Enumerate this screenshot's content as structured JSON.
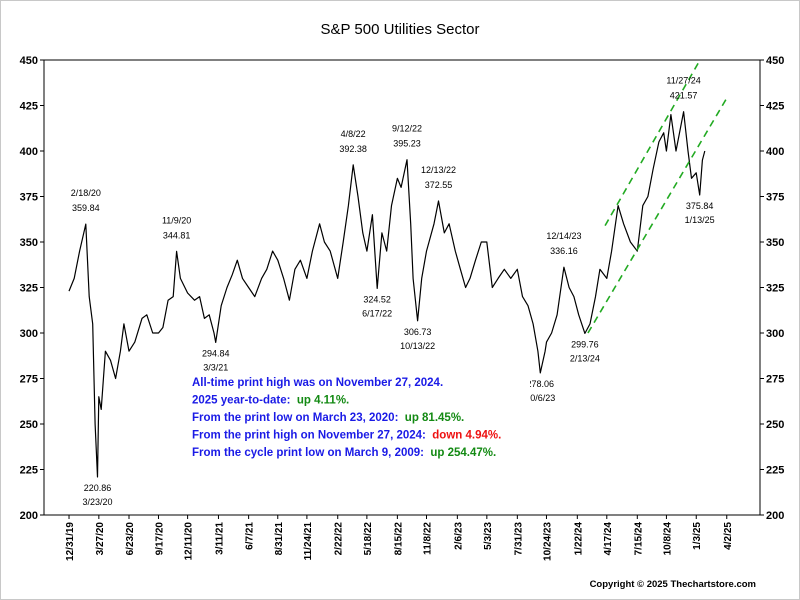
{
  "chart_data": {
    "type": "line",
    "title": "S&P 500 Utilities Sector",
    "color": "#000000",
    "x": [
      "12/31/19",
      "1/15/20",
      "1/31/20",
      "2/18/20",
      "2/28/20",
      "3/9/20",
      "3/16/20",
      "3/23/20",
      "3/27/20",
      "4/3/20",
      "4/15/20",
      "4/30/20",
      "5/15/20",
      "5/29/20",
      "6/8/20",
      "6/23/20",
      "7/10/20",
      "7/31/20",
      "8/14/20",
      "8/31/20",
      "9/17/20",
      "9/30/20",
      "10/15/20",
      "10/30/20",
      "11/9/20",
      "11/20/20",
      "12/11/20",
      "12/31/20",
      "1/15/21",
      "1/29/21",
      "2/12/21",
      "2/26/21",
      "3/3/21",
      "3/19/21",
      "4/5/21",
      "4/20/21",
      "5/5/21",
      "5/20/21",
      "6/7/21",
      "6/25/21",
      "7/15/21",
      "7/30/21",
      "8/16/21",
      "8/31/21",
      "9/17/21",
      "10/4/21",
      "10/20/21",
      "11/5/21",
      "11/24/21",
      "12/10/21",
      "12/31/21",
      "1/14/22",
      "1/31/22",
      "2/22/22",
      "3/10/22",
      "3/25/22",
      "4/8/22",
      "4/22/22",
      "5/6/22",
      "5/18/22",
      "6/3/22",
      "6/17/22",
      "7/1/22",
      "7/15/22",
      "7/29/22",
      "8/15/22",
      "8/26/22",
      "9/12/22",
      "9/23/22",
      "9/30/22",
      "10/13/22",
      "10/25/22",
      "11/8/22",
      "11/30/22",
      "12/13/22",
      "12/30/22",
      "1/13/23",
      "1/31/23",
      "2/15/23",
      "3/2/23",
      "3/15/23",
      "3/31/23",
      "4/17/23",
      "5/3/23",
      "5/19/23",
      "6/5/23",
      "6/23/23",
      "7/12/23",
      "7/31/23",
      "8/15/23",
      "8/31/23",
      "9/15/23",
      "9/29/23",
      "10/6/23",
      "10/20/23",
      "10/24/23",
      "11/8/23",
      "11/24/23",
      "12/14/23",
      "12/29/23",
      "1/12/24",
      "1/26/24",
      "2/13/24",
      "2/28/24",
      "3/15/24",
      "3/28/24",
      "4/17/24",
      "5/1/24",
      "5/20/24",
      "6/5/24",
      "6/25/24",
      "7/15/24",
      "7/31/24",
      "8/15/24",
      "8/30/24",
      "9/16/24",
      "9/30/24",
      "10/8/24",
      "10/21/24",
      "11/5/24",
      "11/27/24",
      "12/10/24",
      "12/20/24",
      "1/3/25",
      "1/13/25",
      "1/21/25",
      "1/28/25"
    ],
    "values": [
      323,
      330,
      345,
      359.84,
      320,
      305,
      250,
      220.86,
      265,
      258,
      290,
      285,
      275,
      290,
      305,
      290,
      295,
      308,
      310,
      300,
      300,
      303,
      318,
      320,
      344.81,
      330,
      322,
      318,
      320,
      308,
      310,
      300,
      294.84,
      315,
      325,
      332,
      340,
      330,
      325,
      320,
      330,
      335,
      345,
      340,
      330,
      318,
      335,
      340,
      330,
      345,
      360,
      350,
      345,
      330,
      350,
      370,
      392.38,
      375,
      355,
      345,
      365,
      324.52,
      355,
      345,
      370,
      385,
      380,
      395.23,
      360,
      330,
      306.73,
      330,
      345,
      360,
      372.55,
      355,
      360,
      345,
      335,
      325,
      330,
      340,
      350,
      350,
      325,
      330,
      335,
      330,
      335,
      320,
      315,
      305,
      290,
      278.06,
      290,
      295,
      300,
      310,
      336.16,
      325,
      320,
      310,
      299.76,
      305,
      320,
      335,
      330,
      345,
      370,
      360,
      350,
      345,
      370,
      375,
      390,
      405,
      410,
      400,
      420,
      400,
      421.57,
      400,
      385,
      388,
      375.84,
      395,
      400
    ],
    "xlim": [
      "10/19/19",
      "7/8/25"
    ],
    "xticks": [
      "12/31/19",
      "3/27/20",
      "6/23/20",
      "9/17/20",
      "12/11/20",
      "3/11/21",
      "6/7/21",
      "8/31/21",
      "11/24/21",
      "2/22/22",
      "5/18/22",
      "8/15/22",
      "11/8/22",
      "2/6/23",
      "5/3/23",
      "7/31/23",
      "10/24/23",
      "1/22/24",
      "4/17/24",
      "7/15/24",
      "10/8/24",
      "1/3/25",
      "4/2/25"
    ],
    "ylim": [
      200,
      450
    ],
    "yticks": [
      200,
      225,
      250,
      275,
      300,
      325,
      350,
      375,
      400,
      425,
      450
    ],
    "annotations": [
      {
        "x": "2/18/20",
        "y": 359.84
      },
      {
        "x": "3/23/20",
        "y": 220.86
      },
      {
        "x": "11/9/20",
        "y": 344.81
      },
      {
        "x": "3/3/21",
        "y": 294.84
      },
      {
        "x": "4/8/22",
        "y": 392.38
      },
      {
        "x": "6/17/22",
        "y": 324.52
      },
      {
        "x": "9/12/22",
        "y": 395.23
      },
      {
        "x": "10/13/22",
        "y": 306.73
      },
      {
        "x": "12/13/22",
        "y": 372.55
      },
      {
        "x": "10/6/23",
        "y": 278.06
      },
      {
        "x": "12/14/23",
        "y": 336.16
      },
      {
        "x": "2/13/24",
        "y": 299.76
      },
      {
        "x": "11/27/24",
        "y": 421.57
      },
      {
        "x": "1/13/25",
        "y": 375.84
      }
    ],
    "trendlines": [
      {
        "x": [
          "4/12/24",
          "1/14/25"
        ],
        "y": [
          359,
          450
        ],
        "color": "#22aa22"
      },
      {
        "x": [
          "2/22/24",
          "4/5/25"
        ],
        "y": [
          300,
          430
        ],
        "color": "#22aa22"
      }
    ],
    "notes": [
      [
        {
          "text": "All-time print high was on November 27, 2024.",
          "color": "#1a1ae6"
        }
      ],
      [
        {
          "text": "2025 year-to-date:  ",
          "color": "#1a1ae6"
        },
        {
          "text": "up 4.11%.",
          "color": "#138a13"
        }
      ],
      [
        {
          "text": "From the print low on March 23, 2020:  ",
          "color": "#1a1ae6"
        },
        {
          "text": "up 81.45%.",
          "color": "#138a13"
        }
      ],
      [
        {
          "text": "From the print high on November 27, 2024:  ",
          "color": "#1a1ae6"
        },
        {
          "text": "down 4.94%.",
          "color": "#ee1111"
        }
      ],
      [
        {
          "text": "From the cycle print low on March 9, 2009:  ",
          "color": "#1a1ae6"
        },
        {
          "text": "up 254.47%.",
          "color": "#138a13"
        }
      ]
    ],
    "copyright": "Copyright © 2025 Thechartstore.com"
  }
}
